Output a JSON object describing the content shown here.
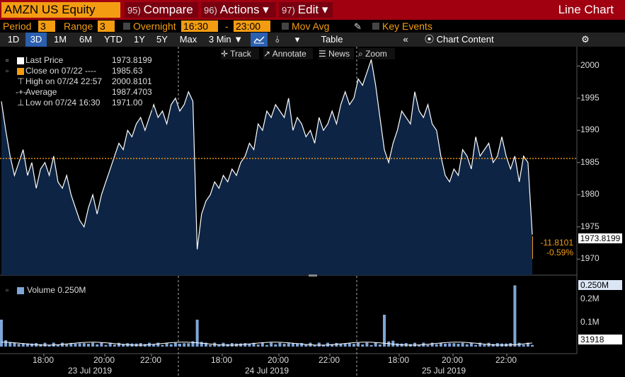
{
  "header": {
    "ticker": "AMZN US Equity",
    "compare_num": "95)",
    "compare_label": "Compare",
    "actions_num": "96)",
    "actions_label": "Actions ▾",
    "edit_num": "97)",
    "edit_label": "Edit ▾",
    "chart_type": "Line Chart"
  },
  "settings": {
    "period_label": "Period",
    "period_value": "3",
    "range_label": "Range",
    "range_value": "3",
    "overnight_label": "Overnight",
    "start_time": "16:30",
    "dash": "-",
    "end_time": "23:00",
    "mov_avg_label": "Mov Avg",
    "key_events_label": "Key Events"
  },
  "timeframes": [
    "1D",
    "3D",
    "1M",
    "6M",
    "YTD",
    "1Y",
    "5Y",
    "Max"
  ],
  "interval": "3 Min ▼",
  "table_label": "Table",
  "collapse_label": "«",
  "chart_content_label": "Chart Content",
  "tools": {
    "track": "Track",
    "annotate": "Annotate",
    "news": "News",
    "zoom": "Zoom"
  },
  "legend": {
    "last_price_label": "Last Price",
    "last_price_value": "1973.8199",
    "close_label": "Close on 07/22 ----",
    "close_value": "1985.63",
    "high_label": "High on 07/24 22:57",
    "high_value": "2000.8101",
    "average_label": "Average",
    "average_value": "1987.4703",
    "low_label": "Low on 07/24 16:30",
    "low_value": "1971.00"
  },
  "volume_legend": "Volume 0.250M",
  "price_tag": "1973.8199",
  "change_abs": "-11.8101",
  "change_pct": "-0.59%",
  "volume_tag": "0.250M",
  "volume_last_tag": "31918",
  "colors": {
    "header_bg": "#a00010",
    "accent": "#f39c12",
    "area_fill": "#0d2444",
    "line": "#ffffff",
    "close_line": "#f39c12"
  },
  "chart_data": {
    "type": "area",
    "price_axis": {
      "ticks": [
        1970,
        1975,
        1980,
        1985,
        1990,
        1995,
        2000
      ],
      "ylim": [
        1967.5,
        2003
      ]
    },
    "close_reference": 1985.63,
    "time_ticks": [
      "18:00",
      "20:00",
      "22:00",
      "18:00",
      "20:00",
      "22:00",
      "18:00",
      "20:00",
      "22:00"
    ],
    "date_labels": [
      "23 Jul 2019",
      "24 Jul 2019",
      "25 Jul 2019"
    ],
    "series": [
      {
        "values": [
          1994.5,
          1990,
          1986,
          1983,
          1985,
          1987,
          1983,
          1985,
          1981,
          1984,
          1985,
          1983,
          1986,
          1982,
          1981,
          1983,
          1980,
          1978,
          1976,
          1975,
          1978,
          1980,
          1977,
          1980,
          1982,
          1984,
          1986,
          1988,
          1987,
          1990,
          1989,
          1991,
          1992,
          1990,
          1992,
          1994,
          1992,
          1993,
          1991,
          1994,
          1995,
          1993,
          1994,
          1996,
          1994.5,
          1971.5,
          1977,
          1979,
          1980,
          1982,
          1981,
          1983,
          1982,
          1984,
          1983,
          1985,
          1986,
          1988,
          1987,
          1991,
          1990,
          1993,
          1992,
          1994,
          1993,
          1992,
          1995,
          1990,
          1992,
          1991,
          1989,
          1990,
          1988,
          1992,
          1990,
          1991,
          1993,
          1991,
          1994,
          1996,
          1994,
          1995,
          1998,
          1997,
          1999,
          2001,
          1997,
          1992,
          1987,
          1985,
          1988,
          1990,
          1993,
          1992,
          1991,
          1996,
          1993,
          1992,
          1994,
          1991,
          1990,
          1986,
          1983,
          1982,
          1984,
          1983,
          1987,
          1986,
          1984,
          1989,
          1986,
          1987,
          1988,
          1985,
          1986,
          1989,
          1986,
          1984,
          1986,
          1982,
          1986,
          1985,
          1973.8
        ]
      }
    ],
    "volume_axis": {
      "ticks": [
        "0.1M",
        "0.2M"
      ],
      "ylim_m": [
        0,
        0.26
      ]
    },
    "volume_spikes_m": [
      0.11,
      0.13,
      0.25
    ]
  }
}
